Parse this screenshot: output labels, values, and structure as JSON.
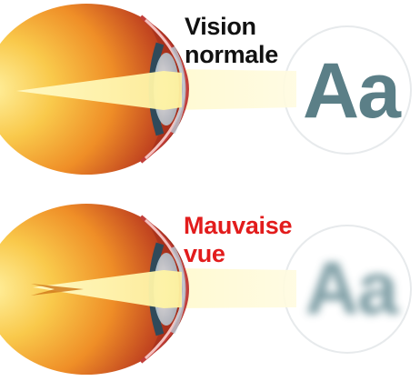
{
  "normal": {
    "line1": "Vision",
    "line2": "normale",
    "letters": "Aa",
    "text_color": "#111111",
    "letter_color": "#5b7f87"
  },
  "bad": {
    "line1": "Mauvaise",
    "line2": "vue",
    "letters": "Aa",
    "text_color": "#e21c1c",
    "letter_color": "#6b8f97",
    "letters_blurred": true
  },
  "colors": {
    "eye_inner": "#fde37a",
    "eye_mid": "#f5a823",
    "eye_outer": "#a7241c",
    "light_beam": "#fff7b0",
    "circle_stroke": "#e7eaec"
  }
}
